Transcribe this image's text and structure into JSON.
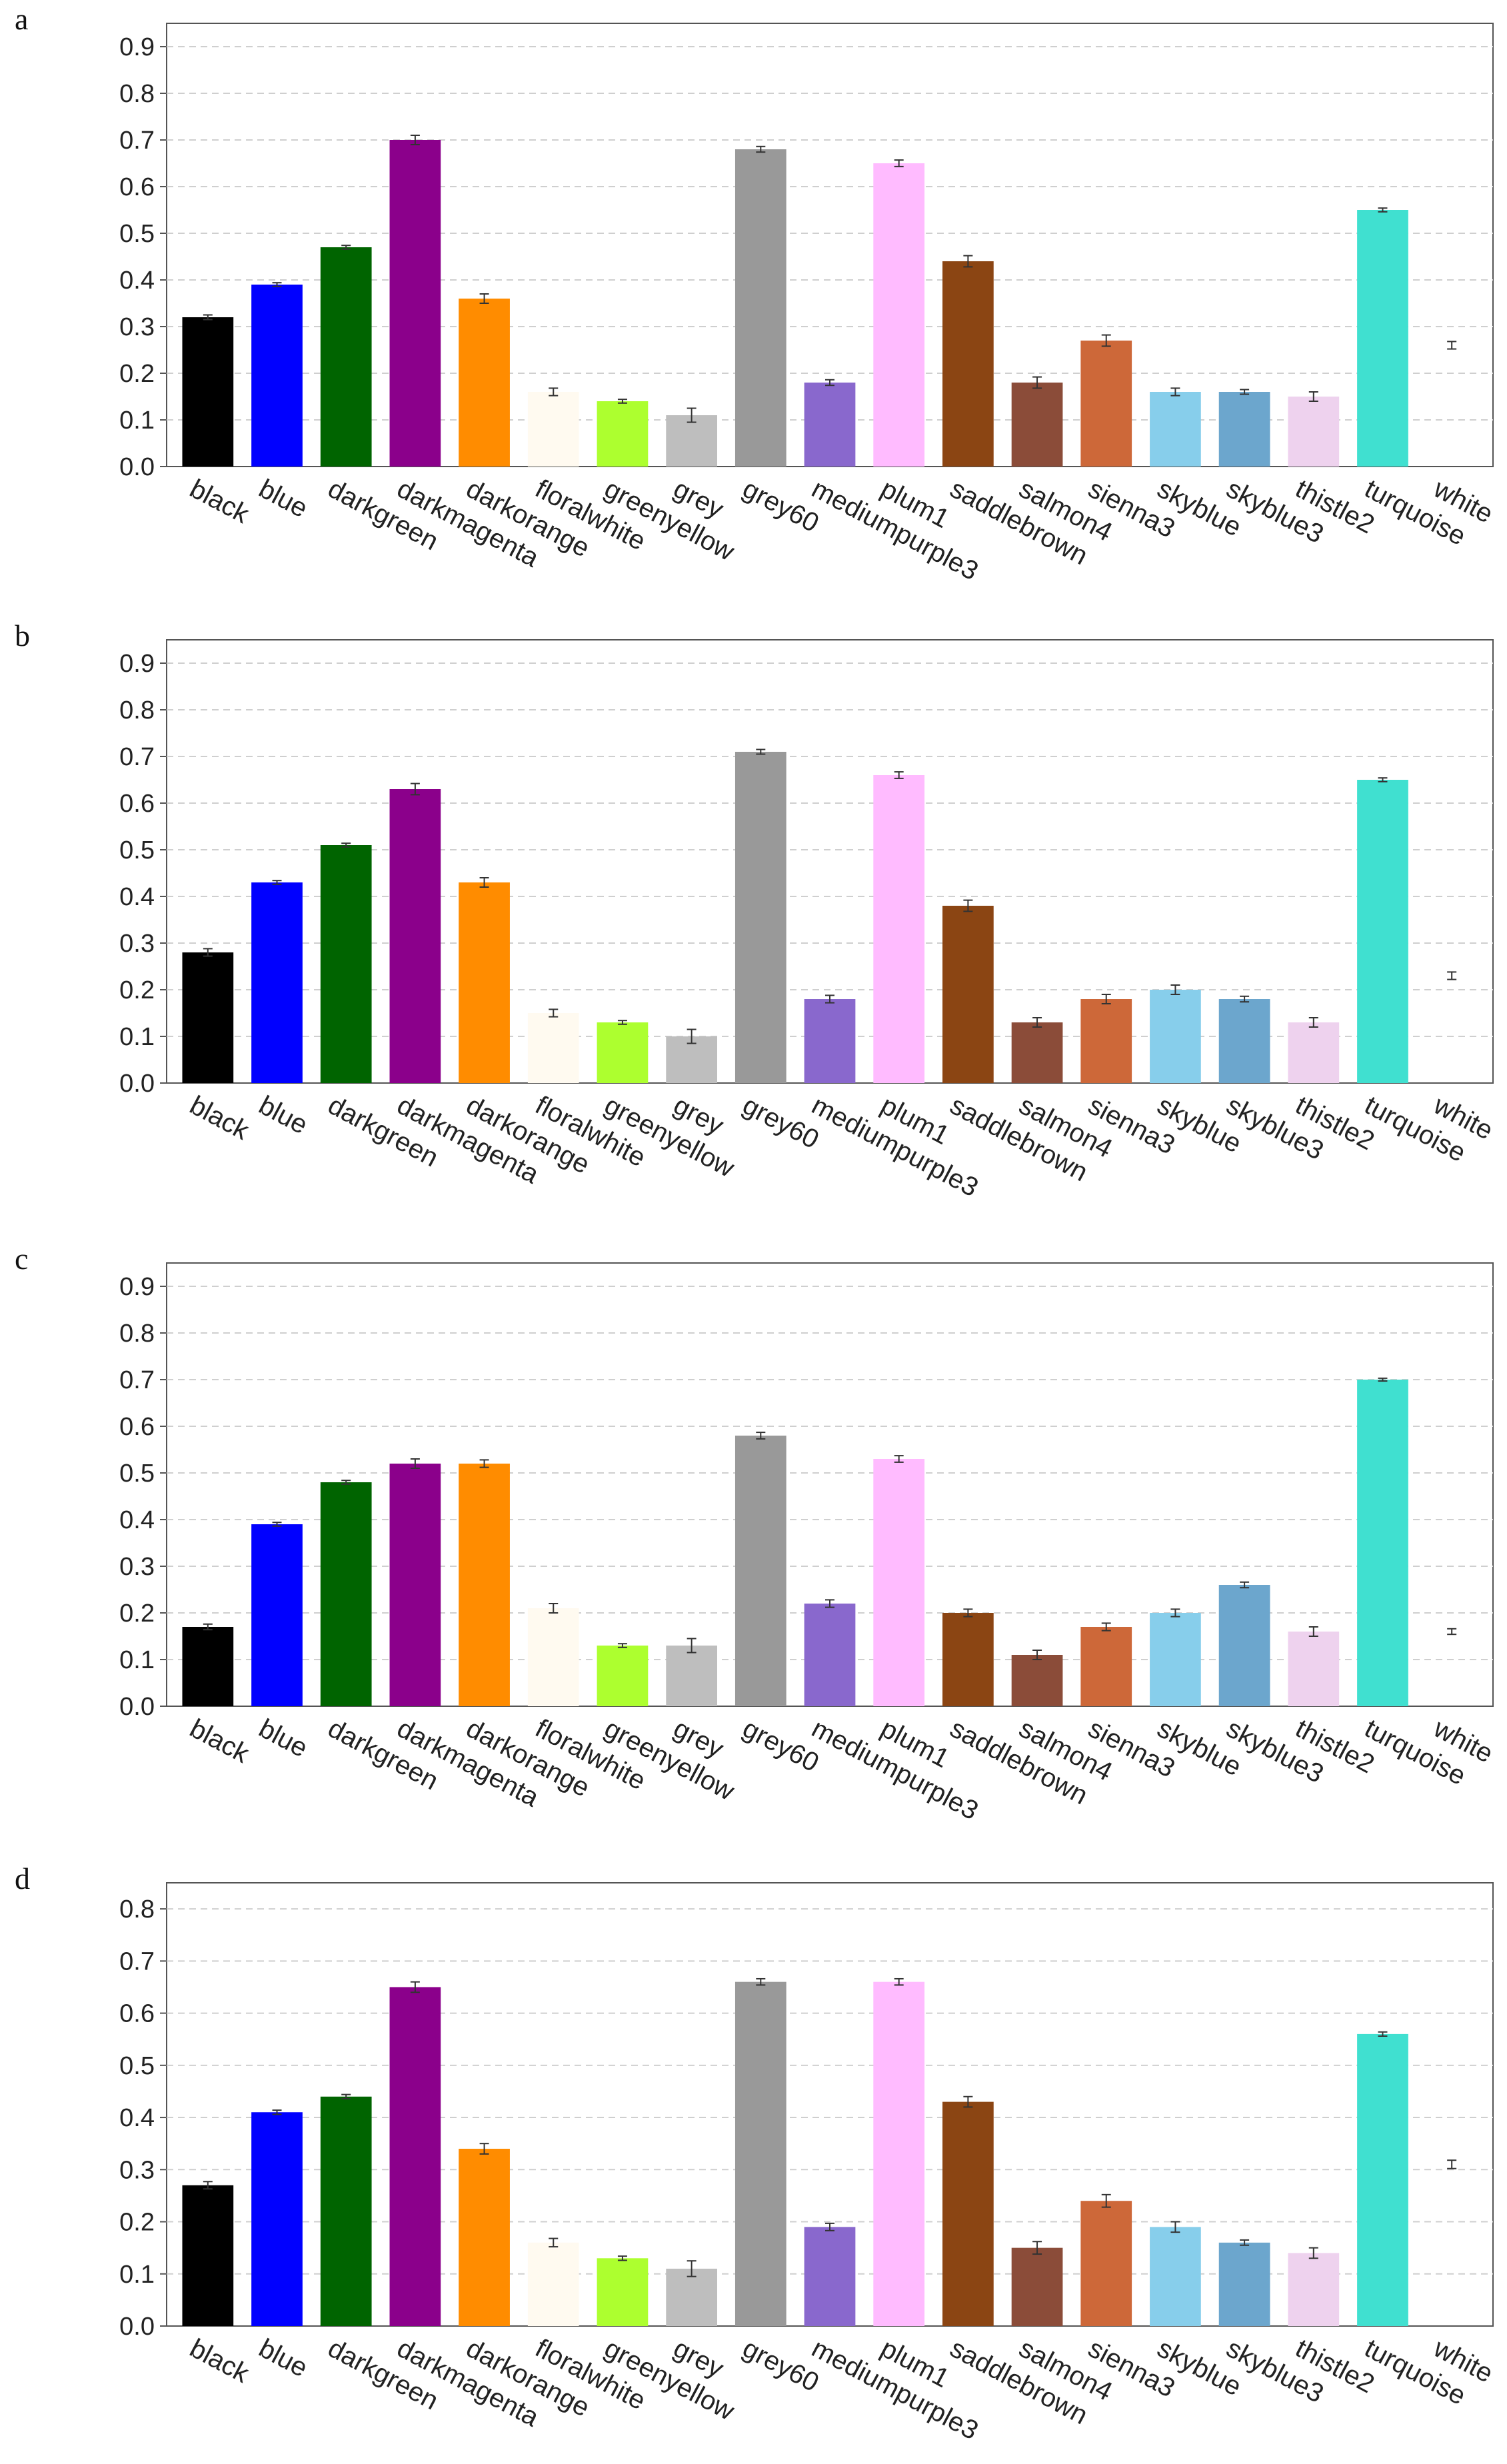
{
  "chart_data": [
    {
      "panel": "a",
      "type": "bar",
      "ylim": [
        0,
        0.95
      ],
      "yticks": [
        "0.0",
        "0.1",
        "0.2",
        "0.3",
        "0.4",
        "0.5",
        "0.6",
        "0.7",
        "0.8",
        "0.9"
      ],
      "categories": [
        "black",
        "blue",
        "darkgreen",
        "darkmagenta",
        "darkorange",
        "floralwhite",
        "greenyellow",
        "grey",
        "grey60",
        "mediumpurple3",
        "plum1",
        "saddlebrown",
        "salmon4",
        "sienna3",
        "skyblue",
        "skyblue3",
        "thistle2",
        "turquoise",
        "white"
      ],
      "values": [
        0.32,
        0.39,
        0.47,
        0.7,
        0.36,
        0.16,
        0.14,
        0.11,
        0.68,
        0.18,
        0.65,
        0.44,
        0.18,
        0.27,
        0.16,
        0.16,
        0.15,
        0.55,
        0.26
      ],
      "errors": [
        0.005,
        0.004,
        0.004,
        0.01,
        0.01,
        0.008,
        0.004,
        0.015,
        0.006,
        0.006,
        0.007,
        0.012,
        0.012,
        0.012,
        0.008,
        0.005,
        0.01,
        0.004,
        0.008
      ]
    },
    {
      "panel": "b",
      "type": "bar",
      "ylim": [
        0,
        0.95
      ],
      "yticks": [
        "0.0",
        "0.1",
        "0.2",
        "0.3",
        "0.4",
        "0.5",
        "0.6",
        "0.7",
        "0.8",
        "0.9"
      ],
      "categories": [
        "black",
        "blue",
        "darkgreen",
        "darkmagenta",
        "darkorange",
        "floralwhite",
        "greenyellow",
        "grey",
        "grey60",
        "mediumpurple3",
        "plum1",
        "saddlebrown",
        "salmon4",
        "sienna3",
        "skyblue",
        "skyblue3",
        "thistle2",
        "turquoise",
        "white"
      ],
      "values": [
        0.28,
        0.43,
        0.51,
        0.63,
        0.43,
        0.15,
        0.13,
        0.1,
        0.71,
        0.18,
        0.66,
        0.38,
        0.13,
        0.18,
        0.2,
        0.18,
        0.13,
        0.65,
        0.23
      ],
      "errors": [
        0.008,
        0.004,
        0.004,
        0.012,
        0.01,
        0.008,
        0.004,
        0.015,
        0.005,
        0.008,
        0.007,
        0.012,
        0.01,
        0.01,
        0.01,
        0.006,
        0.01,
        0.004,
        0.008
      ]
    },
    {
      "panel": "c",
      "type": "bar",
      "ylim": [
        0,
        0.95
      ],
      "yticks": [
        "0.0",
        "0.1",
        "0.2",
        "0.3",
        "0.4",
        "0.5",
        "0.6",
        "0.7",
        "0.8",
        "0.9"
      ],
      "categories": [
        "black",
        "blue",
        "darkgreen",
        "darkmagenta",
        "darkorange",
        "floralwhite",
        "greenyellow",
        "grey",
        "grey60",
        "mediumpurple3",
        "plum1",
        "saddlebrown",
        "salmon4",
        "sienna3",
        "skyblue",
        "skyblue3",
        "thistle2",
        "turquoise",
        "white"
      ],
      "values": [
        0.17,
        0.39,
        0.48,
        0.52,
        0.52,
        0.21,
        0.13,
        0.13,
        0.58,
        0.22,
        0.53,
        0.2,
        0.11,
        0.17,
        0.2,
        0.26,
        0.16,
        0.7,
        0.16
      ],
      "errors": [
        0.006,
        0.004,
        0.004,
        0.01,
        0.008,
        0.01,
        0.004,
        0.015,
        0.007,
        0.008,
        0.007,
        0.008,
        0.01,
        0.008,
        0.008,
        0.006,
        0.01,
        0.003,
        0.006
      ]
    },
    {
      "panel": "d",
      "type": "bar",
      "ylim": [
        0,
        0.85
      ],
      "yticks": [
        "0.0",
        "0.1",
        "0.2",
        "0.3",
        "0.4",
        "0.5",
        "0.6",
        "0.7",
        "0.8"
      ],
      "categories": [
        "black",
        "blue",
        "darkgreen",
        "darkmagenta",
        "darkorange",
        "floralwhite",
        "greenyellow",
        "grey",
        "grey60",
        "mediumpurple3",
        "plum1",
        "saddlebrown",
        "salmon4",
        "sienna3",
        "skyblue",
        "skyblue3",
        "thistle2",
        "turquoise",
        "white"
      ],
      "values": [
        0.27,
        0.41,
        0.44,
        0.65,
        0.34,
        0.16,
        0.13,
        0.11,
        0.66,
        0.19,
        0.66,
        0.43,
        0.15,
        0.24,
        0.19,
        0.16,
        0.14,
        0.56,
        0.31
      ],
      "errors": [
        0.007,
        0.004,
        0.004,
        0.01,
        0.01,
        0.008,
        0.004,
        0.015,
        0.006,
        0.007,
        0.006,
        0.01,
        0.012,
        0.012,
        0.01,
        0.005,
        0.01,
        0.004,
        0.008
      ]
    }
  ],
  "bar_colors": [
    "#000000",
    "#0000ff",
    "#006400",
    "#8b008b",
    "#ff8c00",
    "#fffaf0",
    "#adff2f",
    "#bebebe",
    "#999999",
    "#8968cd",
    "#ffbbff",
    "#8b4513",
    "#8b4c39",
    "#cd6839",
    "#87ceeb",
    "#6ca6cd",
    "#eed2ee",
    "#40e0d0",
    "#ffffff"
  ]
}
